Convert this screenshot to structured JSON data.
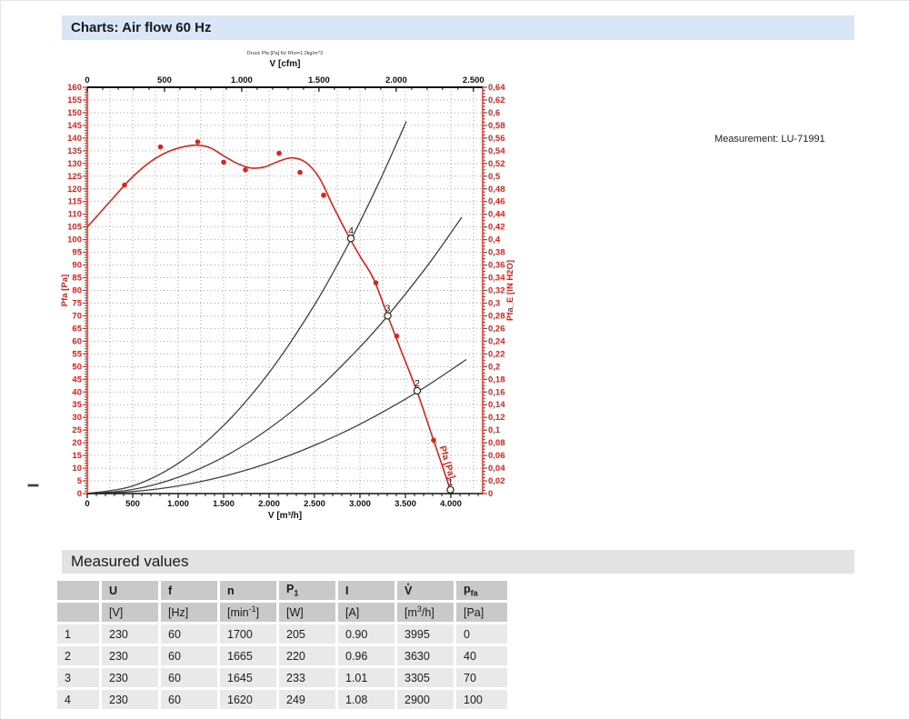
{
  "page": {
    "title": "Charts: Air flow 60 Hz",
    "section2_title": "Measured values",
    "measurement_label": "Measurement: LU-71991"
  },
  "chart_data": {
    "type": "line",
    "title_small": "Druck Pfa [Pa] für Rho=1.2kg/m^3",
    "grid": {
      "v_step_m3h": 250,
      "p_step_pa": 5,
      "color": "#a2a2a2"
    },
    "axes": {
      "top": {
        "label": "V [cfm]",
        "min": 0,
        "max": 2560,
        "major": 500,
        "minor": 100,
        "format": "thousands",
        "color": "#1a1a1a"
      },
      "bottom": {
        "label": "V [m³/h]",
        "min": 0,
        "max": 4350,
        "major": 500,
        "minor": 100,
        "format": "thousands",
        "color": "#1a1a1a"
      },
      "left": {
        "label": "Pfa [Pa]",
        "min": 0,
        "max": 160,
        "major": 5,
        "minor": 1,
        "format": "plain",
        "color": "#e22118"
      },
      "right": {
        "label": "Pfa_E [IN H2O]",
        "min": 0,
        "max": 0.64,
        "major": 0.02,
        "minor": 0.005,
        "format": "comma",
        "color": "#e22118"
      }
    },
    "series": [
      {
        "name": "air-flow-pressure-curve",
        "color": "#e22118",
        "width": 1.6,
        "points": [
          [
            0,
            105
          ],
          [
            150,
            111
          ],
          [
            300,
            117
          ],
          [
            450,
            123
          ],
          [
            600,
            128
          ],
          [
            750,
            132
          ],
          [
            900,
            134.8
          ],
          [
            1050,
            136.5
          ],
          [
            1200,
            137.2
          ],
          [
            1350,
            136.2
          ],
          [
            1500,
            133
          ],
          [
            1650,
            130
          ],
          [
            1800,
            128.2
          ],
          [
            1950,
            128.6
          ],
          [
            2100,
            130.8
          ],
          [
            2250,
            132.2
          ],
          [
            2400,
            130.5
          ],
          [
            2550,
            124.5
          ],
          [
            2700,
            113.5
          ],
          [
            2850,
            103
          ],
          [
            3000,
            93.5
          ],
          [
            3150,
            84.5
          ],
          [
            3305,
            70
          ],
          [
            3450,
            56.5
          ],
          [
            3630,
            40
          ],
          [
            3800,
            22
          ],
          [
            3900,
            11.5
          ],
          [
            3995,
            1.5
          ],
          [
            4030,
            0
          ]
        ]
      },
      {
        "name": "system-resistance-curve-1",
        "color": "#404040",
        "width": 1.3,
        "points": [
          [
            0,
            0
          ],
          [
            500,
            3
          ],
          [
            1000,
            11.9
          ],
          [
            1500,
            26.8
          ],
          [
            2000,
            47.6
          ],
          [
            2500,
            74.3
          ],
          [
            2900,
            100
          ],
          [
            3200,
            121.8
          ],
          [
            3510,
            146.5
          ]
        ]
      },
      {
        "name": "system-resistance-curve-2",
        "color": "#404040",
        "width": 1.3,
        "points": [
          [
            0,
            0
          ],
          [
            500,
            1.6
          ],
          [
            1000,
            6.4
          ],
          [
            1500,
            14.4
          ],
          [
            2000,
            25.6
          ],
          [
            2500,
            40
          ],
          [
            3000,
            57.7
          ],
          [
            3305,
            70
          ],
          [
            3750,
            90.1
          ],
          [
            4120,
            108.8
          ]
        ]
      },
      {
        "name": "system-resistance-curve-3",
        "color": "#404040",
        "width": 1.3,
        "points": [
          [
            0,
            0
          ],
          [
            500,
            0.8
          ],
          [
            1000,
            3
          ],
          [
            1500,
            6.8
          ],
          [
            2000,
            12.1
          ],
          [
            2500,
            19
          ],
          [
            3000,
            27.3
          ],
          [
            3630,
            40
          ],
          [
            4170,
            52.8
          ]
        ]
      }
    ],
    "scatter": {
      "color": "#e22118",
      "r": 2.8,
      "points": [
        [
          410,
          121.5
        ],
        [
          805,
          136.5
        ],
        [
          1215,
          138.5
        ],
        [
          1500,
          130.5
        ],
        [
          1740,
          127.5
        ],
        [
          2110,
          134
        ],
        [
          2340,
          126.5
        ],
        [
          2600,
          117.5
        ],
        [
          3175,
          83
        ],
        [
          3405,
          62
        ],
        [
          3810,
          21
        ]
      ]
    },
    "markers": [
      {
        "label": "1",
        "v": 3995,
        "p": 1.5
      },
      {
        "label": "2",
        "v": 3630,
        "p": 40.5
      },
      {
        "label": "3",
        "v": 3305,
        "p": 70
      },
      {
        "label": "4",
        "v": 2900,
        "p": 100.5
      }
    ],
    "curve_label": {
      "text": "Pfa [Pa]",
      "v": 3930,
      "p": 12,
      "angle": 73
    }
  },
  "table": {
    "col_headers": [
      "",
      "U",
      "f",
      "n",
      "P<sub>1</sub>",
      "I",
      "V̊",
      "p<sub>fa</sub>"
    ],
    "unit_row": [
      "",
      "[V]",
      "[Hz]",
      "[min<sup>-1</sup>]",
      "[W]",
      "[A]",
      "[m<sup>3</sup>/h]",
      "[Pa]"
    ],
    "rows": [
      [
        "1",
        "230",
        "60",
        "1700",
        "205",
        "0.90",
        "3995",
        "0"
      ],
      [
        "2",
        "230",
        "60",
        "1665",
        "220",
        "0.96",
        "3630",
        "40"
      ],
      [
        "3",
        "230",
        "60",
        "1645",
        "233",
        "1.01",
        "3305",
        "70"
      ],
      [
        "4",
        "230",
        "60",
        "1620",
        "249",
        "1.08",
        "2900",
        "100"
      ]
    ]
  }
}
